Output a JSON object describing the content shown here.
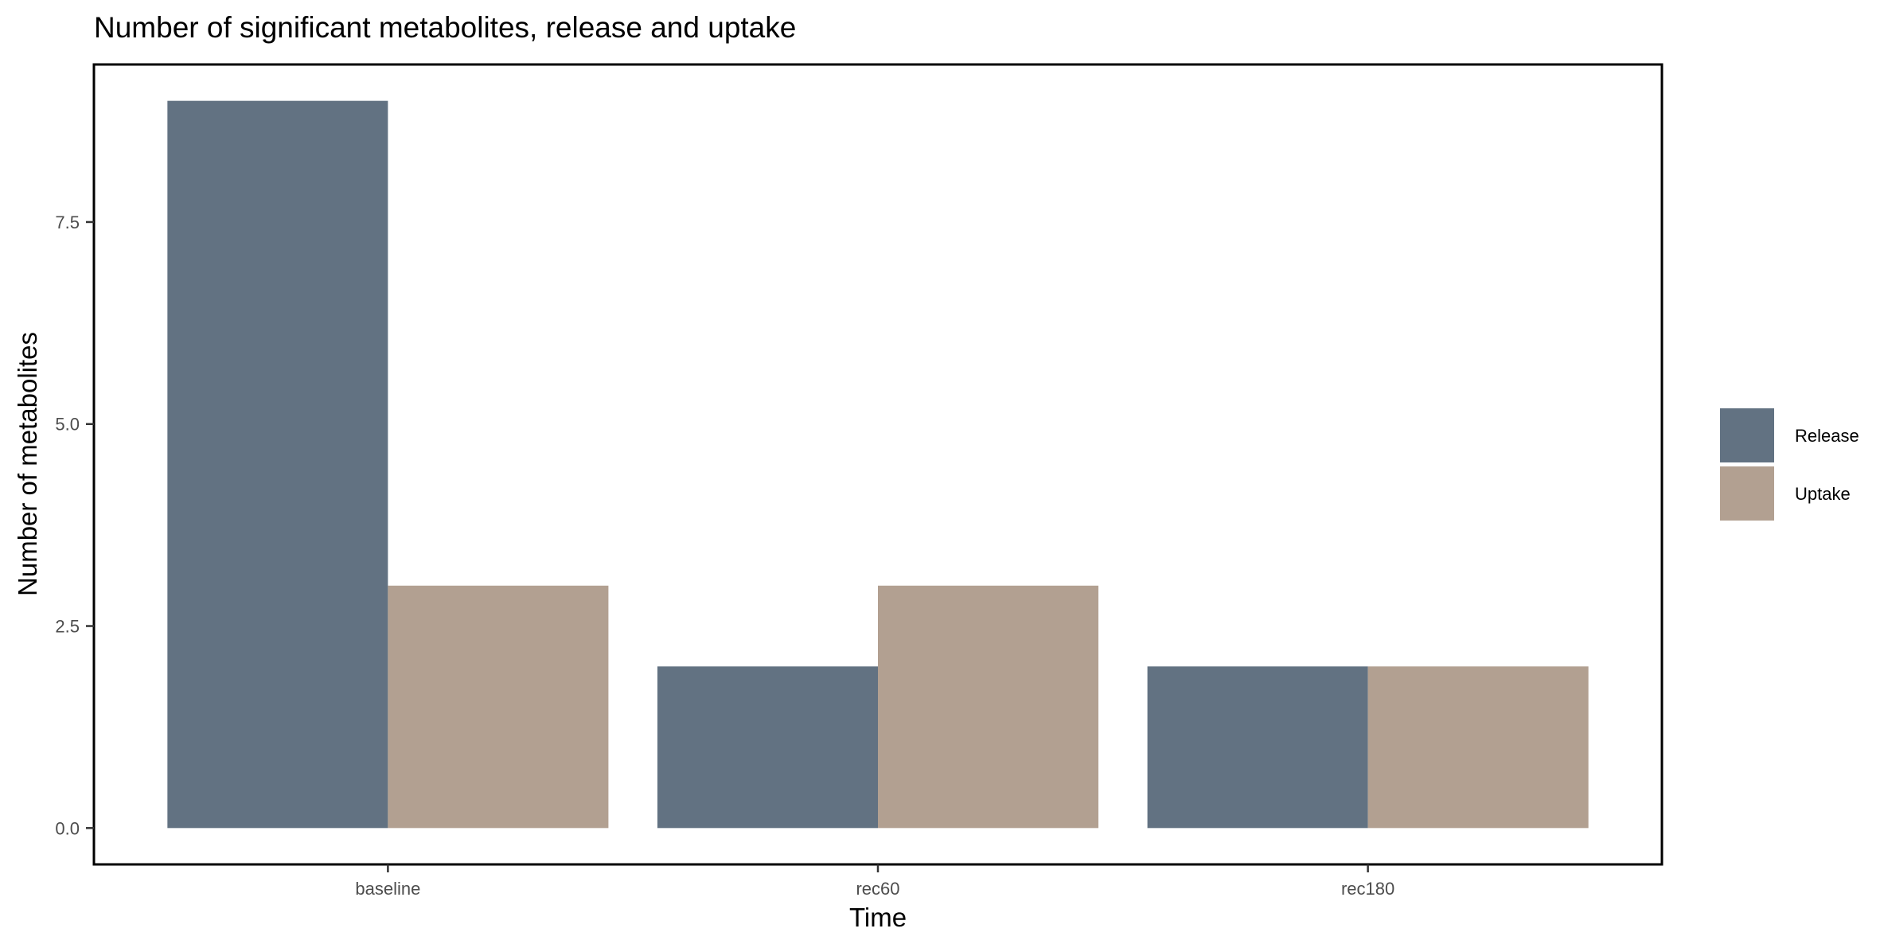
{
  "chart_data": {
    "type": "bar",
    "title": "Number of significant metabolites, release and uptake",
    "xlabel": "Time",
    "ylabel": "Number of metabolites",
    "categories": [
      "baseline",
      "rec60",
      "rec180"
    ],
    "series": [
      {
        "name": "Release",
        "values": [
          9,
          2,
          2
        ],
        "color": "#627282"
      },
      {
        "name": "Uptake",
        "values": [
          3,
          3,
          2
        ],
        "color": "#b2a091"
      }
    ],
    "ylim": [
      -0.45,
      9.45
    ],
    "yticks": [
      0.0,
      2.5,
      5.0,
      7.5
    ],
    "ytick_labels": [
      "0.0",
      "2.5",
      "5.0",
      "7.5"
    ],
    "grid": false,
    "legend_position": "right",
    "barmode": "dodge"
  }
}
